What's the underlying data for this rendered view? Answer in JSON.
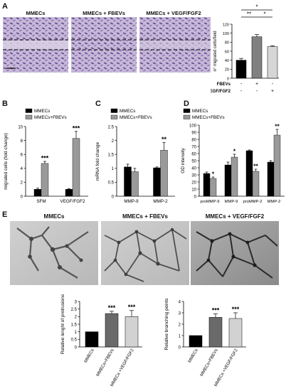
{
  "panels": {
    "A": {
      "label": "A",
      "image_titles": [
        "MMECs",
        "MMECs + FBEVs",
        "MMECs + VEGF/FGF2"
      ],
      "chart": {
        "ylabel": "n° migrated cells/field",
        "row_labels": [
          "FBEVs",
          "VEGF/FGF2"
        ],
        "row_signs": [
          [
            "-",
            "+",
            "-"
          ],
          [
            "-",
            "-",
            "+"
          ]
        ],
        "values": [
          40,
          92,
          70
        ],
        "errors": [
          4,
          5,
          2
        ],
        "ylim": [
          0,
          120
        ],
        "yticks": [
          0,
          20,
          40,
          60,
          80,
          100,
          120
        ],
        "colors": [
          "#000000",
          "#808080",
          "#d6d6d6"
        ],
        "sig": [
          "**",
          "*",
          "*"
        ]
      }
    },
    "B": {
      "label": "B",
      "ylabel": "migrated cells (fold change)",
      "legend": [
        "MMECs",
        "MMECs+FBEVs"
      ]
    },
    "C": {
      "label": "C",
      "ylabel": "mRNA fold change",
      "legend": [
        "MMECs",
        "MMECs+FBEVs"
      ]
    },
    "D": {
      "label": "D",
      "ylabel": "OD intensity",
      "legend": [
        "MMECs",
        "MMECs+FBEVs"
      ]
    },
    "E": {
      "label": "E",
      "image_titles": [
        "MMECs",
        "MMECs + FBEVs",
        "MMECs + VEGF/FGF2"
      ],
      "left_ylabel": "Relative lenght of protrusions",
      "right_ylabel": "Relative branching points"
    }
  },
  "chart_data": [
    {
      "type": "bar",
      "id": "A",
      "categories": [
        "MMECs",
        "MMECs + FBEVs",
        "MMECs + VEGF/FGF2"
      ],
      "values": [
        40,
        92,
        70
      ],
      "ylabel": "n° migrated cells/field",
      "ylim": [
        0,
        120
      ]
    },
    {
      "type": "bar",
      "id": "B",
      "categories": [
        "SFM",
        "VEGF/FGF2"
      ],
      "series": [
        {
          "name": "MMECs",
          "values": [
            1.0,
            1.0
          ],
          "errors": [
            0.15,
            0.1
          ],
          "color": "#000000"
        },
        {
          "name": "MMECs+FBEVs",
          "values": [
            4.7,
            8.3
          ],
          "errors": [
            0.3,
            1.0
          ],
          "color": "#9a9a9a"
        }
      ],
      "sig": [
        "***",
        "***"
      ],
      "ylabel": "migrated cells (fold change)",
      "ylim": [
        0,
        10
      ],
      "yticks": [
        0,
        2,
        4,
        6,
        8,
        10
      ]
    },
    {
      "type": "bar",
      "id": "C",
      "categories": [
        "MMP-9",
        "MMP-2"
      ],
      "series": [
        {
          "name": "MMECs",
          "values": [
            1.05,
            1.02
          ],
          "errors": [
            0.1,
            0.03
          ],
          "color": "#000000"
        },
        {
          "name": "MMECs+FBEVs",
          "values": [
            0.88,
            1.65
          ],
          "errors": [
            0.12,
            0.28
          ],
          "color": "#9a9a9a"
        }
      ],
      "sig": [
        "",
        "**"
      ],
      "ylabel": "mRNA fold change",
      "ylim": [
        0,
        2.5
      ],
      "yticks": [
        0.0,
        0.5,
        1.0,
        1.5,
        2.0,
        2.5
      ]
    },
    {
      "type": "bar",
      "id": "D",
      "categories": [
        "proMMP-9",
        "MMP-9",
        "proMMP-2",
        "MMP-2"
      ],
      "series": [
        {
          "name": "MMECs",
          "values": [
            32,
            44,
            64,
            48
          ],
          "errors": [
            2,
            4,
            1,
            2
          ],
          "color": "#000000"
        },
        {
          "name": "MMECs+FBEVs",
          "values": [
            25,
            55,
            35,
            86
          ],
          "errors": [
            2,
            4,
            3,
            8
          ],
          "color": "#9a9a9a"
        }
      ],
      "sig": [
        "*",
        "*",
        "**",
        "**"
      ],
      "ylabel": "OD intensity",
      "ylim": [
        0,
        100
      ],
      "yticks": [
        0,
        10,
        20,
        30,
        40,
        50,
        60,
        70,
        80,
        90,
        100
      ]
    },
    {
      "type": "bar",
      "id": "E1",
      "categories": [
        "MMECs",
        "MMECs+FBEVs",
        "MMECs +VEGF/FGF2"
      ],
      "values": [
        1.0,
        2.2,
        2.0
      ],
      "errors": [
        0,
        0.15,
        0.4
      ],
      "colors": [
        "#000000",
        "#6a6a6a",
        "#d2d2d2"
      ],
      "sig": [
        "",
        "***",
        "***"
      ],
      "ylabel": "Relative lenght of protrusions",
      "ylim": [
        0,
        3
      ],
      "yticks": [
        0,
        0.5,
        1,
        1.5,
        2,
        2.5,
        3
      ]
    },
    {
      "type": "bar",
      "id": "E2",
      "categories": [
        "MMECs",
        "MMECs+FBEVs",
        "MMECs +VEGF/FGF2"
      ],
      "values": [
        1.0,
        2.6,
        2.5
      ],
      "errors": [
        0,
        0.3,
        0.5
      ],
      "colors": [
        "#000000",
        "#6a6a6a",
        "#d2d2d2"
      ],
      "sig": [
        "",
        "***",
        "***"
      ],
      "ylabel": "Relative branching points",
      "ylim": [
        0,
        4
      ],
      "yticks": [
        0,
        1,
        2,
        3,
        4
      ]
    }
  ]
}
